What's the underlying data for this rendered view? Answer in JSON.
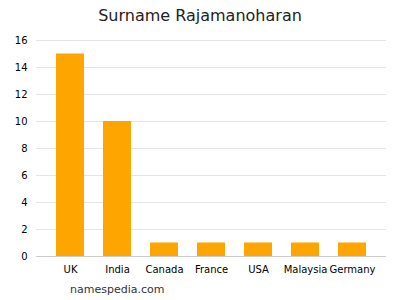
{
  "chart_data": {
    "type": "bar",
    "title": "Surname Rajamanoharan",
    "categories": [
      "UK",
      "India",
      "Canada",
      "France",
      "USA",
      "Malaysia",
      "Germany"
    ],
    "values": [
      15,
      10,
      1,
      1,
      1,
      1,
      1
    ],
    "color": "#FFA500",
    "ylim": [
      0,
      16
    ],
    "yticks": [
      0,
      2,
      4,
      6,
      8,
      10,
      12,
      14,
      16
    ],
    "grid": true,
    "annotations": [
      "namespedia.com"
    ]
  }
}
